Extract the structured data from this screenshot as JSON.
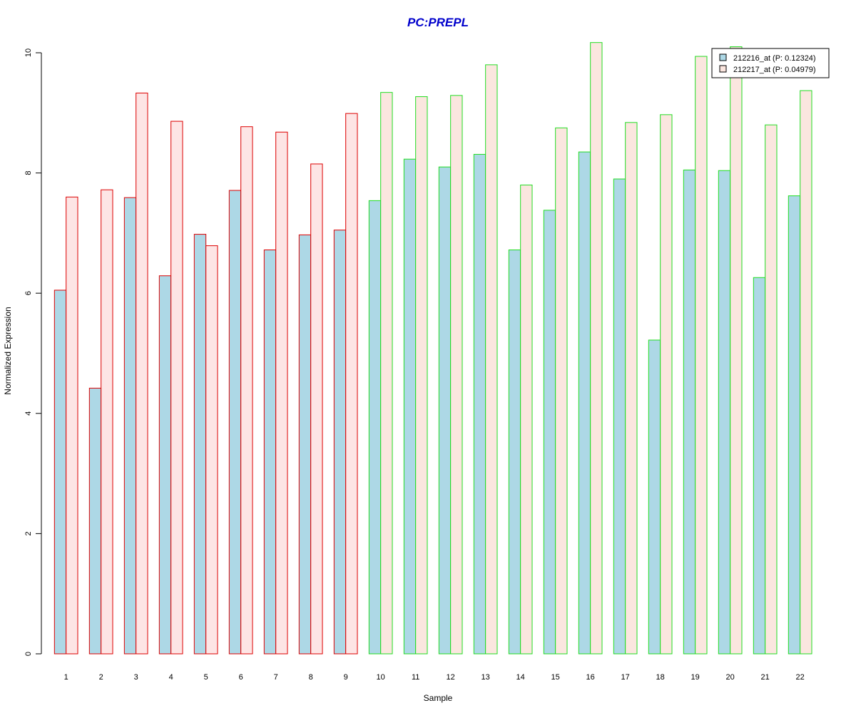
{
  "chart_data": {
    "type": "bar",
    "title": "PC:PREPL",
    "xlabel": "Sample",
    "ylabel": "Normalized Expression",
    "ylim": [
      0,
      10
    ],
    "yticks": [
      0,
      2,
      4,
      6,
      8,
      10
    ],
    "categories": [
      "1",
      "2",
      "3",
      "4",
      "5",
      "6",
      "7",
      "8",
      "9",
      "10",
      "11",
      "12",
      "13",
      "14",
      "15",
      "16",
      "17",
      "18",
      "19",
      "20",
      "21",
      "22"
    ],
    "series": [
      {
        "name": "212216_at (P: 0.12324)",
        "fill": "#add8e6",
        "values": [
          6.05,
          4.42,
          7.59,
          6.29,
          6.98,
          7.71,
          6.72,
          6.97,
          7.05,
          7.54,
          8.23,
          8.1,
          8.31,
          6.72,
          7.38,
          8.35,
          7.9,
          5.22,
          8.05,
          8.04,
          6.26,
          7.62
        ]
      },
      {
        "name": "212217_at (P: 0.04979)",
        "fill": "#fbe6df",
        "values": [
          7.6,
          7.72,
          9.33,
          8.86,
          6.79,
          8.77,
          8.68,
          8.15,
          8.99,
          9.34,
          9.27,
          9.29,
          9.8,
          7.8,
          8.75,
          10.17,
          8.84,
          8.97,
          9.94,
          10.1,
          8.8,
          9.37
        ]
      }
    ],
    "group_border_colors": [
      "#dd0000",
      "#dd0000",
      "#dd0000",
      "#dd0000",
      "#dd0000",
      "#dd0000",
      "#dd0000",
      "#dd0000",
      "#dd0000",
      "#22dd22",
      "#22dd22",
      "#22dd22",
      "#22dd22",
      "#22dd22",
      "#22dd22",
      "#22dd22",
      "#22dd22",
      "#22dd22",
      "#22dd22",
      "#22dd22",
      "#22dd22",
      "#22dd22"
    ],
    "group1_fill_override": "#fde5e5",
    "title_color": "#0000cc",
    "legend_position": "top-right",
    "grid": false
  }
}
